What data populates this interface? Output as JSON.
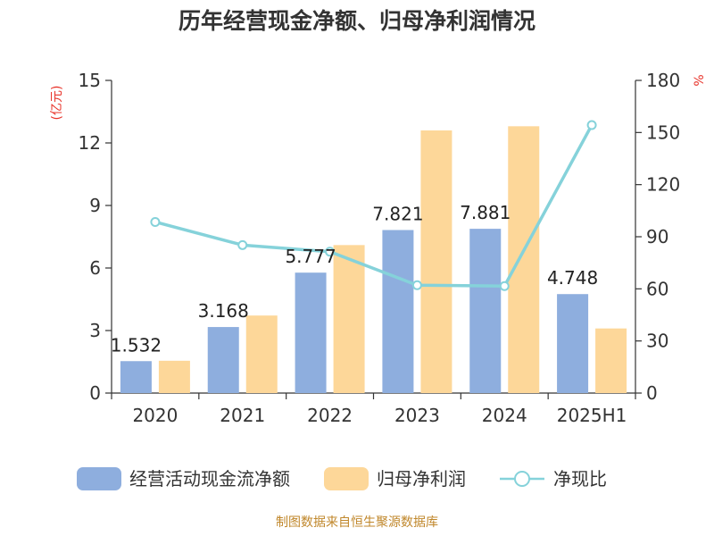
{
  "chart_data": {
    "type": "bar",
    "title": "历年经营现金净额、归母净利润情况",
    "categories": [
      "2020",
      "2021",
      "2022",
      "2023",
      "2024",
      "2025H1"
    ],
    "left_axis": {
      "unit": "(亿元)",
      "ylim": [
        0,
        15
      ],
      "ticks": [
        "0",
        "3",
        "6",
        "9",
        "12",
        "15"
      ]
    },
    "right_axis": {
      "unit": "%",
      "ylim": [
        0,
        180
      ],
      "ticks": [
        "0",
        "30",
        "60",
        "90",
        "120",
        "150",
        "180"
      ]
    },
    "series": [
      {
        "name": "经营活动现金流净额",
        "type": "bar",
        "axis": "left",
        "color": "#8eaede",
        "values": [
          1.532,
          3.168,
          5.777,
          7.821,
          7.881,
          4.748
        ],
        "labels": [
          "1.532",
          "3.168",
          "5.777",
          "7.821",
          "7.881",
          "4.748"
        ]
      },
      {
        "name": "归母净利润",
        "type": "bar",
        "axis": "left",
        "color": "#fdd799",
        "values": [
          1.55,
          3.72,
          7.1,
          12.6,
          12.8,
          3.1
        ]
      },
      {
        "name": "净现比",
        "type": "line",
        "axis": "right",
        "color": "#85d2da",
        "values": [
          98.5,
          85.2,
          81.4,
          62.1,
          61.6,
          154.3
        ]
      }
    ],
    "grid": false,
    "legend_position": "bottom"
  },
  "source": "制图数据来自恒生聚源数据库",
  "colors": {
    "left_unit": "#e8332a",
    "right_unit": "#e8332a",
    "source": "#c0872b",
    "axis": "#333333"
  }
}
